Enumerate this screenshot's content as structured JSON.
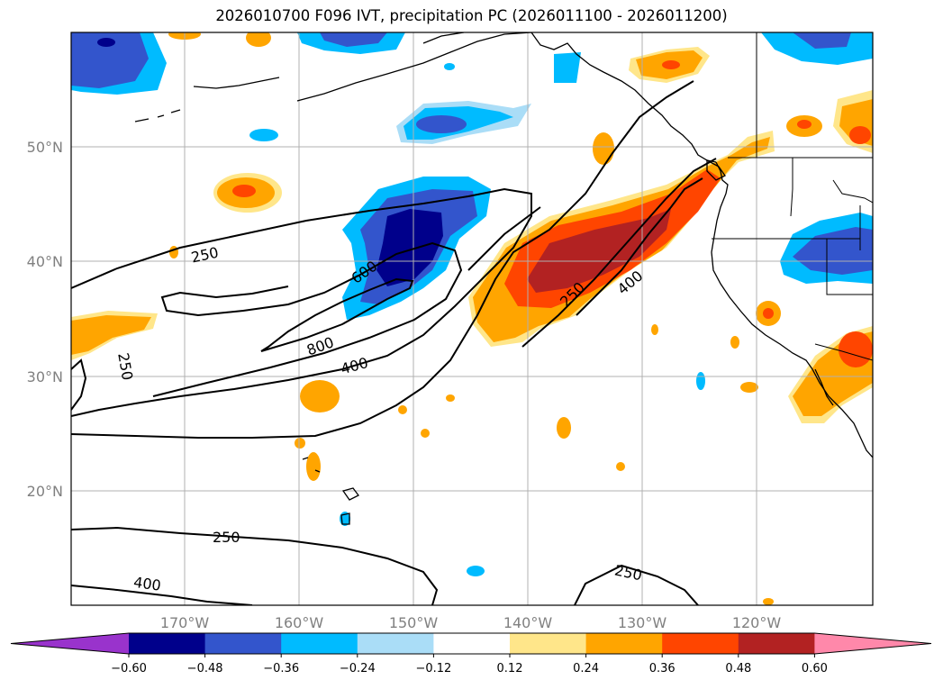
{
  "title": "2026010700 F096 IVT, precipitation PC (2026011100 - 2026011200)",
  "lat_labels": [
    "50°N",
    "40°N",
    "30°N",
    "20°N"
  ],
  "lon_labels": [
    "170°W",
    "160°W",
    "150°W",
    "140°W",
    "130°W",
    "120°W"
  ],
  "contour_labels": [
    "250",
    "600",
    "800",
    "400",
    "250",
    "400",
    "250",
    "250",
    "400",
    "250"
  ],
  "colorbar": {
    "ticks": [
      "−0.60",
      "−0.48",
      "−0.36",
      "−0.24",
      "−0.12",
      "0.12",
      "0.24",
      "0.36",
      "0.48",
      "0.60"
    ],
    "colors": [
      "#9933cc",
      "#00008b",
      "#3355cc",
      "#00bbff",
      "#aaddf7",
      "#ffffff",
      "#ffe68a",
      "#ffa500",
      "#ff4500",
      "#b22222",
      "#ff88aa"
    ]
  }
}
